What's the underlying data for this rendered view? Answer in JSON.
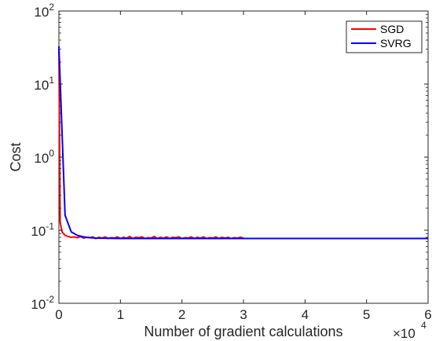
{
  "chart_data": {
    "type": "line",
    "xlabel": "Number of gradient calculations",
    "ylabel": "Cost",
    "x_multiplier": "×10",
    "x_multiplier_exp": "4",
    "xlim": [
      0,
      60000
    ],
    "ylim": [
      0.01,
      100
    ],
    "yscale": "log",
    "x_ticks": [
      "0",
      "1",
      "2",
      "3",
      "4",
      "5",
      "6"
    ],
    "y_ticks": [
      {
        "base": "10",
        "exp": "-2",
        "value": 0.01
      },
      {
        "base": "10",
        "exp": "-1",
        "value": 0.1
      },
      {
        "base": "10",
        "exp": "0",
        "value": 1
      },
      {
        "base": "10",
        "exp": "1",
        "value": 10
      },
      {
        "base": "10",
        "exp": "2",
        "value": 100
      }
    ],
    "grid": false,
    "legend_position": "top-right",
    "series": [
      {
        "name": "SGD",
        "color": "#ff0000",
        "x": [
          0,
          200,
          500,
          1000,
          1500,
          2000,
          2500,
          3000,
          3500,
          4000,
          4500,
          5000,
          5500,
          6000,
          6500,
          7000,
          7500,
          8000,
          8500,
          9000,
          9500,
          10000,
          10500,
          11000,
          11500,
          12000,
          12500,
          13000,
          13500,
          14000,
          14500,
          15000,
          15500,
          16000,
          16500,
          17000,
          17500,
          18000,
          18500,
          19000,
          19500,
          20000,
          20500,
          21000,
          21500,
          22000,
          22500,
          23000,
          23500,
          24000,
          24500,
          25000,
          25500,
          26000,
          26500,
          27000,
          27500,
          28000,
          28500,
          29000,
          29500,
          30000
        ],
        "y": [
          30,
          0.13,
          0.095,
          0.085,
          0.082,
          0.08,
          0.081,
          0.079,
          0.082,
          0.078,
          0.08,
          0.079,
          0.081,
          0.077,
          0.08,
          0.078,
          0.081,
          0.077,
          0.079,
          0.078,
          0.081,
          0.077,
          0.08,
          0.078,
          0.082,
          0.077,
          0.08,
          0.079,
          0.081,
          0.077,
          0.079,
          0.078,
          0.082,
          0.077,
          0.08,
          0.078,
          0.081,
          0.077,
          0.08,
          0.079,
          0.081,
          0.077,
          0.079,
          0.078,
          0.081,
          0.077,
          0.08,
          0.078,
          0.081,
          0.077,
          0.079,
          0.078,
          0.081,
          0.077,
          0.08,
          0.078,
          0.08,
          0.077,
          0.079,
          0.078,
          0.08,
          0.078
        ]
      },
      {
        "name": "SVRG",
        "color": "#0000ff",
        "x": [
          0,
          1000,
          2000,
          3000,
          4000,
          5000,
          6000,
          8000,
          10000,
          15000,
          20000,
          30000,
          40000,
          50000,
          60000
        ],
        "y": [
          33,
          0.16,
          0.095,
          0.085,
          0.081,
          0.079,
          0.078,
          0.0775,
          0.0772,
          0.077,
          0.077,
          0.077,
          0.077,
          0.077,
          0.077
        ]
      }
    ]
  }
}
